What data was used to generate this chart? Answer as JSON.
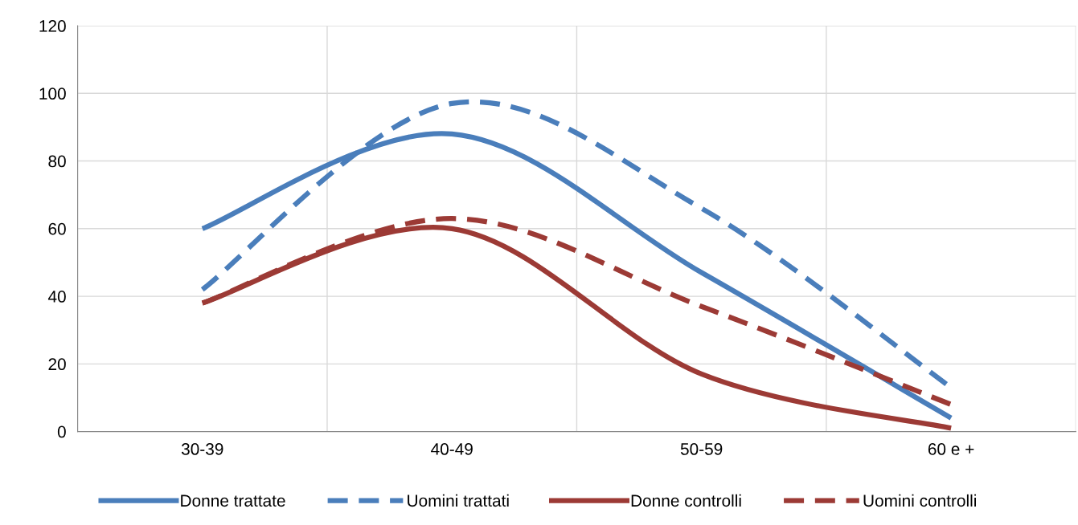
{
  "chart_data": {
    "type": "line",
    "categories": [
      "30-39",
      "40-49",
      "50-59",
      "60 e +"
    ],
    "series": [
      {
        "name": "Donne trattate",
        "color": "#4a7ebb",
        "values": [
          60,
          88,
          47,
          4
        ],
        "line_style": "solid"
      },
      {
        "name": "Uomini trattati",
        "color": "#4a7ebb",
        "values": [
          42,
          97,
          66,
          13
        ],
        "line_style": "dashed"
      },
      {
        "name": "Donne controlli",
        "color": "#9c3a35",
        "values": [
          38,
          60,
          17,
          1
        ],
        "line_style": "solid"
      },
      {
        "name": "Uomini controlli",
        "color": "#9c3a35",
        "values": [
          38,
          63,
          37,
          8
        ],
        "line_style": "dashed"
      }
    ],
    "ylim": [
      0,
      120
    ],
    "yticks": [
      0,
      20,
      40,
      60,
      80,
      100,
      120
    ],
    "grid": true,
    "legend": "bottom",
    "marker": "none"
  }
}
